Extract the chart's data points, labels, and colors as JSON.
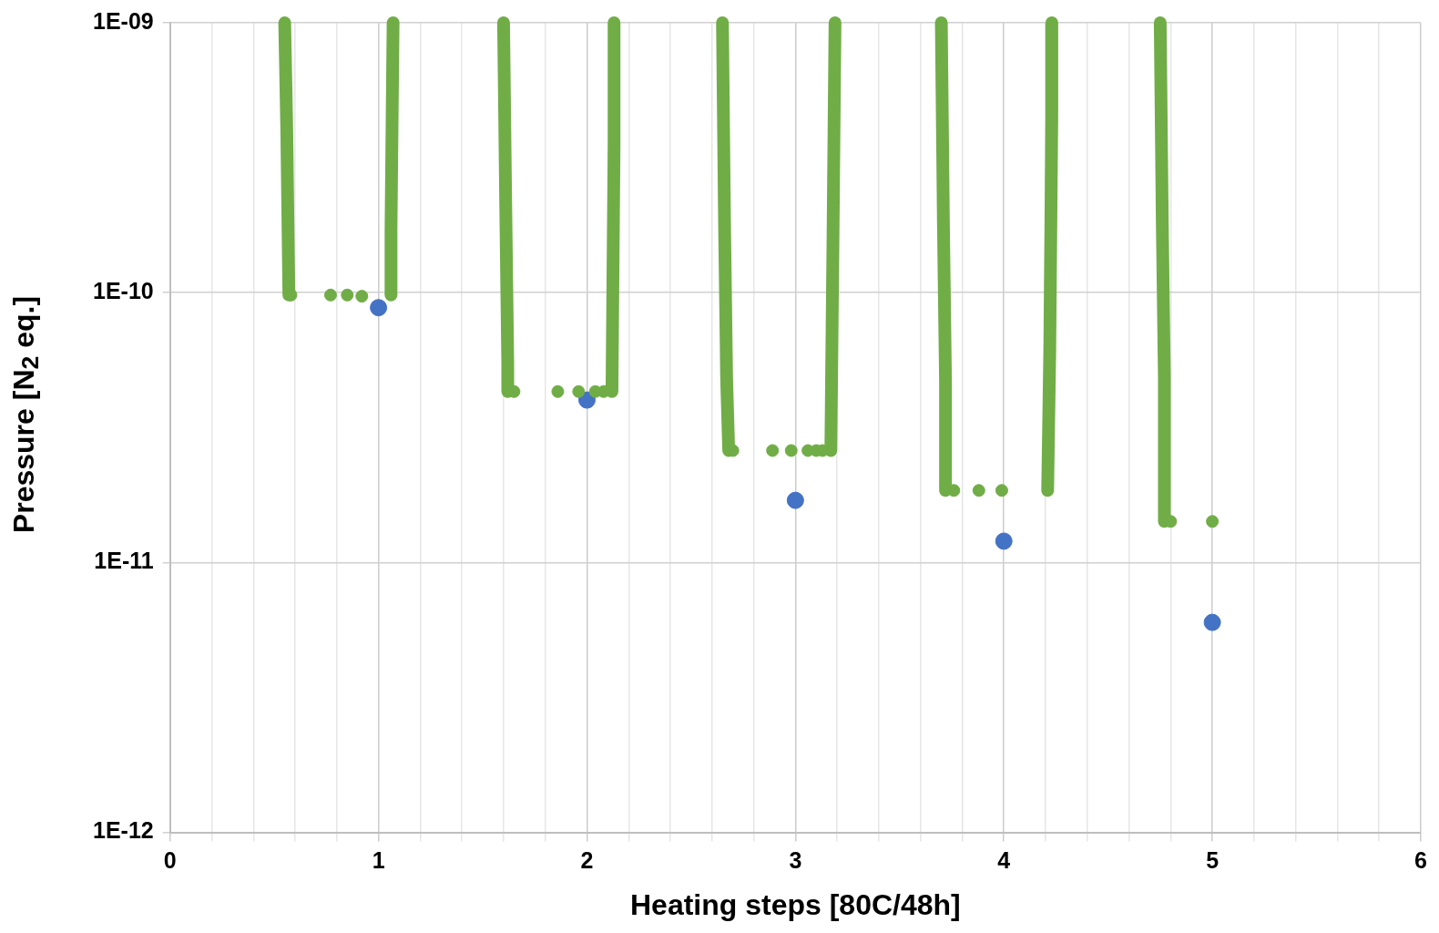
{
  "chart_data": {
    "type": "scatter",
    "xlabel": "Heating steps [80C/48h]",
    "ylabel": "Pressure [N$_{2}$ eq.]",
    "xlim": [
      0,
      6
    ],
    "xticks": [
      0,
      {
        "value": 0.2,
        "label": null
      },
      {
        "value": 0.4,
        "label": null
      },
      {
        "value": 0.6,
        "label": null
      },
      {
        "value": 0.8,
        "label": null
      },
      1,
      {
        "value": 1.2,
        "label": null
      },
      {
        "value": 1.4,
        "label": null
      },
      {
        "value": 1.6,
        "label": null
      },
      {
        "value": 1.8,
        "label": null
      },
      2,
      {
        "value": 2.2,
        "label": null
      },
      {
        "value": 2.4,
        "label": null
      },
      {
        "value": 2.6,
        "label": null
      },
      {
        "value": 2.8,
        "label": null
      },
      3,
      {
        "value": 3.2,
        "label": null
      },
      {
        "value": 3.4,
        "label": null
      },
      {
        "value": 3.6,
        "label": null
      },
      {
        "value": 3.8,
        "label": null
      },
      4,
      {
        "value": 4.2,
        "label": null
      },
      {
        "value": 4.4,
        "label": null
      },
      {
        "value": 4.6,
        "label": null
      },
      {
        "value": 4.8,
        "label": null
      },
      5,
      {
        "value": 5.2,
        "label": null
      },
      {
        "value": 5.4,
        "label": null
      },
      {
        "value": 5.6,
        "label": null
      },
      {
        "value": 5.8,
        "label": null
      },
      6
    ],
    "ylim": [
      1e-12,
      1e-09
    ],
    "log": "y",
    "yticks": [
      {
        "value": 1e-12,
        "label": "1E-12"
      },
      {
        "value": 1e-11,
        "label": "1E-11"
      },
      {
        "value": 1e-10,
        "label": "1E-10"
      },
      {
        "value": 1e-09,
        "label": "1E-09"
      }
    ],
    "grid": true,
    "series": [
      {
        "type": "line",
        "marker": "none",
        "color": "#70ad47",
        "x": [
          0.55,
          0.56,
          0.57
        ],
        "values": [
          1e-09,
          4e-10,
          9.8e-11
        ]
      },
      {
        "type": "line",
        "marker": "none",
        "color": "#70ad47",
        "x": [
          1.06,
          1.06,
          1.07
        ],
        "values": [
          9.8e-11,
          1.7e-10,
          1e-09
        ]
      },
      {
        "type": "line",
        "marker": "none",
        "color": "#70ad47",
        "x": [
          1.6,
          1.61,
          1.62,
          1.62
        ],
        "values": [
          1e-09,
          2.2e-10,
          5.5e-11,
          4.3e-11
        ]
      },
      {
        "type": "line",
        "marker": "none",
        "color": "#70ad47",
        "x": [
          2.12,
          2.13,
          2.13
        ],
        "values": [
          4.3e-11,
          3.5e-10,
          1e-09
        ]
      },
      {
        "type": "line",
        "marker": "none",
        "color": "#70ad47",
        "x": [
          2.65,
          2.66,
          2.67,
          2.68
        ],
        "values": [
          1e-09,
          1.8e-10,
          4.8e-11,
          2.6e-11
        ]
      },
      {
        "type": "line",
        "marker": "none",
        "color": "#70ad47",
        "x": [
          3.17,
          3.18,
          3.19
        ],
        "values": [
          2.6e-11,
          1.5e-10,
          1e-09
        ]
      },
      {
        "type": "line",
        "marker": "none",
        "color": "#70ad47",
        "x": [
          3.7,
          3.71,
          3.72,
          3.72
        ],
        "values": [
          1e-09,
          1.8e-10,
          4.7e-11,
          1.85e-11
        ]
      },
      {
        "type": "line",
        "marker": "none",
        "color": "#70ad47",
        "x": [
          4.21,
          4.22,
          4.23,
          4.23
        ],
        "values": [
          1.85e-11,
          6e-11,
          4.5e-10,
          1e-09
        ]
      },
      {
        "type": "line",
        "marker": "none",
        "color": "#70ad47",
        "x": [
          4.75,
          4.76,
          4.77,
          4.77
        ],
        "values": [
          1e-09,
          1.8e-10,
          4.8e-11,
          1.42e-11
        ]
      },
      {
        "type": "scatter",
        "marker": "circle",
        "color": "#70ad47",
        "x": [
          0.58,
          0.77,
          0.85,
          0.92,
          1.65,
          1.86,
          1.96,
          2.04,
          2.08,
          2.7,
          2.89,
          2.98,
          3.06,
          3.1,
          3.13,
          3.76,
          3.88,
          3.99,
          4.8,
          5.0
        ],
        "values": [
          9.8e-11,
          9.8e-11,
          9.8e-11,
          9.7e-11,
          4.3e-11,
          4.3e-11,
          4.3e-11,
          4.3e-11,
          4.3e-11,
          2.6e-11,
          2.6e-11,
          2.6e-11,
          2.6e-11,
          2.6e-11,
          2.6e-11,
          1.85e-11,
          1.85e-11,
          1.85e-11,
          1.42e-11,
          1.42e-11
        ]
      },
      {
        "type": "scatter",
        "marker": "circle",
        "color": "#4472c4",
        "x": [
          1,
          2,
          3,
          4,
          5
        ],
        "values": [
          8.8e-11,
          4e-11,
          1.7e-11,
          1.2e-11,
          6e-12
        ]
      }
    ]
  }
}
